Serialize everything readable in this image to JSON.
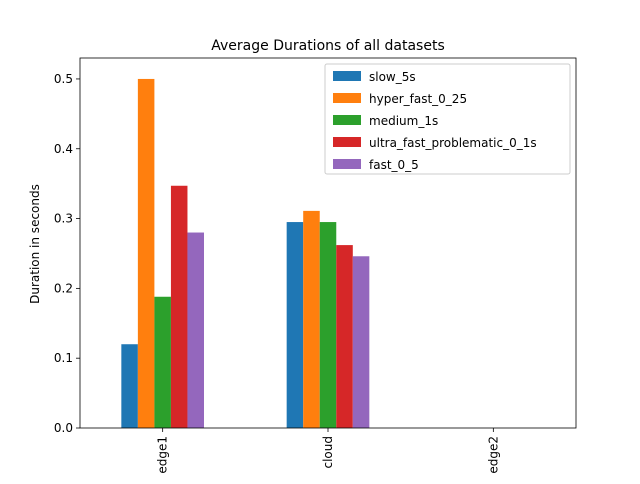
{
  "chart_data": {
    "type": "bar",
    "title": "Average Durations of all datasets",
    "xlabel": "",
    "ylabel": "Duration in seconds",
    "categories": [
      "edge1",
      "cloud",
      "edge2"
    ],
    "ylim": [
      0,
      0.53
    ],
    "yticks": [
      "0.0",
      "0.1",
      "0.2",
      "0.3",
      "0.4",
      "0.5"
    ],
    "grid": false,
    "legend_position": "top-right",
    "series": [
      {
        "name": "slow_5s",
        "color": "#1f77b4",
        "values": [
          0.12,
          0.295,
          0
        ]
      },
      {
        "name": "hyper_fast_0_25",
        "color": "#ff7f0e",
        "values": [
          0.5,
          0.311,
          0
        ]
      },
      {
        "name": "medium_1s",
        "color": "#2ca02c",
        "values": [
          0.188,
          0.295,
          0
        ]
      },
      {
        "name": "ultra_fast_problematic_0_1s",
        "color": "#d62728",
        "values": [
          0.347,
          0.262,
          0
        ]
      },
      {
        "name": "fast_0_5",
        "color": "#9467bd",
        "values": [
          0.28,
          0.246,
          0
        ]
      }
    ]
  }
}
